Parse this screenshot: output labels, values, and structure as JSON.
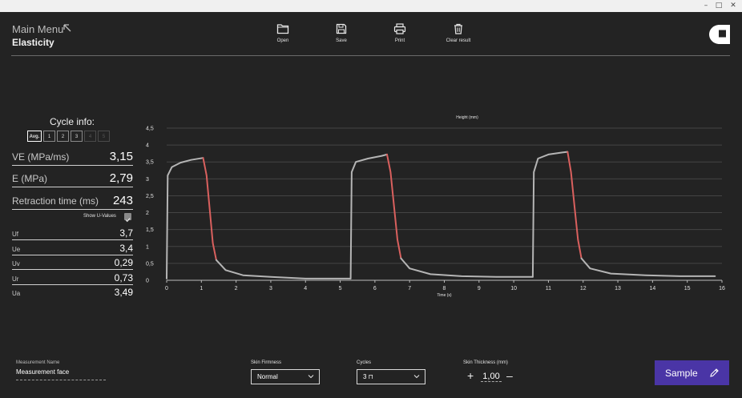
{
  "window": {
    "minimize": "–",
    "maximize": "□",
    "close": "✕"
  },
  "header": {
    "title": "Main Menu",
    "subtitle": "Elasticity",
    "back_icon": "arrow-up-left-icon"
  },
  "toolbar": [
    {
      "label": "Open",
      "icon": "folder-icon"
    },
    {
      "label": "Save",
      "icon": "save-icon"
    },
    {
      "label": "Print",
      "icon": "printer-icon"
    },
    {
      "label": "Clear result",
      "icon": "trash-icon"
    }
  ],
  "cycle_info": {
    "title": "Cycle info:",
    "buttons": [
      "Avg.",
      "1",
      "2",
      "3",
      "4",
      "5"
    ],
    "active": "Avg."
  },
  "metrics": [
    {
      "label": "VE (MPa/ms)",
      "value": "3,15"
    },
    {
      "label": "E (MPa)",
      "value": "2,79"
    },
    {
      "label": "Retraction time (ms)",
      "value": "243"
    }
  ],
  "show_u_values": {
    "label": "Show U-Values",
    "checked": true
  },
  "u_values": [
    {
      "label": "Uf",
      "value": "3,7"
    },
    {
      "label": "Ue",
      "value": "3,4"
    },
    {
      "label": "Uv",
      "value": "0,29"
    },
    {
      "label": "Ur",
      "value": "0,73"
    },
    {
      "label": "Ua",
      "value": "3,49"
    }
  ],
  "chart_data": {
    "type": "line",
    "title": "Height (mm)",
    "xlabel": "Time (s)",
    "ylabel": "",
    "xlim": [
      0,
      16
    ],
    "ylim": [
      0,
      4.5
    ],
    "x_ticks": [
      "0",
      "1",
      "2",
      "3",
      "4",
      "5",
      "6",
      "7",
      "8",
      "9",
      "10",
      "11",
      "12",
      "13",
      "14",
      "15",
      "16"
    ],
    "y_ticks": [
      "0",
      "0,5",
      "1",
      "1,5",
      "2",
      "2,5",
      "3",
      "3,5",
      "4",
      "4,5"
    ],
    "grid": true,
    "colors": {
      "line": "#b5b5b5",
      "retraction": "#d9605e",
      "grid": "#444444"
    },
    "series": [
      {
        "points": [
          [
            0,
            0.05
          ],
          [
            0.03,
            3.1
          ],
          [
            0.15,
            3.35
          ],
          [
            0.4,
            3.48
          ],
          [
            0.7,
            3.56
          ],
          [
            1.05,
            3.62
          ]
        ]
      },
      {
        "points": [
          [
            1.05,
            3.62
          ],
          [
            1.15,
            3.1
          ],
          [
            1.25,
            2.0
          ],
          [
            1.33,
            1.1
          ],
          [
            1.43,
            0.6
          ]
        ]
      },
      {
        "points": [
          [
            1.43,
            0.6
          ],
          [
            1.7,
            0.3
          ],
          [
            2.2,
            0.15
          ],
          [
            3.0,
            0.1
          ],
          [
            4.0,
            0.05
          ],
          [
            5.3,
            0.05
          ]
        ]
      },
      {
        "points": [
          [
            5.3,
            0.05
          ],
          [
            5.33,
            3.2
          ],
          [
            5.45,
            3.5
          ],
          [
            5.8,
            3.6
          ],
          [
            6.2,
            3.68
          ],
          [
            6.35,
            3.72
          ]
        ]
      },
      {
        "points": [
          [
            6.35,
            3.72
          ],
          [
            6.45,
            3.2
          ],
          [
            6.55,
            2.2
          ],
          [
            6.65,
            1.2
          ],
          [
            6.75,
            0.65
          ]
        ]
      },
      {
        "points": [
          [
            6.75,
            0.65
          ],
          [
            7.0,
            0.35
          ],
          [
            7.6,
            0.18
          ],
          [
            8.5,
            0.12
          ],
          [
            9.5,
            0.1
          ],
          [
            10.55,
            0.1
          ]
        ]
      },
      {
        "points": [
          [
            10.55,
            0.1
          ],
          [
            10.58,
            3.2
          ],
          [
            10.7,
            3.6
          ],
          [
            11.0,
            3.72
          ],
          [
            11.4,
            3.78
          ],
          [
            11.55,
            3.8
          ]
        ]
      },
      {
        "points": [
          [
            11.55,
            3.8
          ],
          [
            11.65,
            3.2
          ],
          [
            11.75,
            2.2
          ],
          [
            11.85,
            1.2
          ],
          [
            11.95,
            0.65
          ]
        ]
      },
      {
        "points": [
          [
            11.95,
            0.65
          ],
          [
            12.2,
            0.35
          ],
          [
            12.8,
            0.2
          ],
          [
            13.8,
            0.15
          ],
          [
            14.8,
            0.12
          ],
          [
            15.8,
            0.12
          ]
        ]
      }
    ],
    "retraction_segments": [
      1,
      4,
      7
    ]
  },
  "footer": {
    "measurement_name_label": "Measurement Name",
    "measurement_name": "Measurement face",
    "skin_firmness_label": "Skin Firmness",
    "skin_firmness": "Normal",
    "cycles_label": "Cycles",
    "cycles": "3 ⊓",
    "skin_thickness_label": "Skin Thickness (mm)",
    "skin_thickness": "1,00",
    "plus": "+",
    "minus": "–",
    "sample_button": "Sample"
  }
}
